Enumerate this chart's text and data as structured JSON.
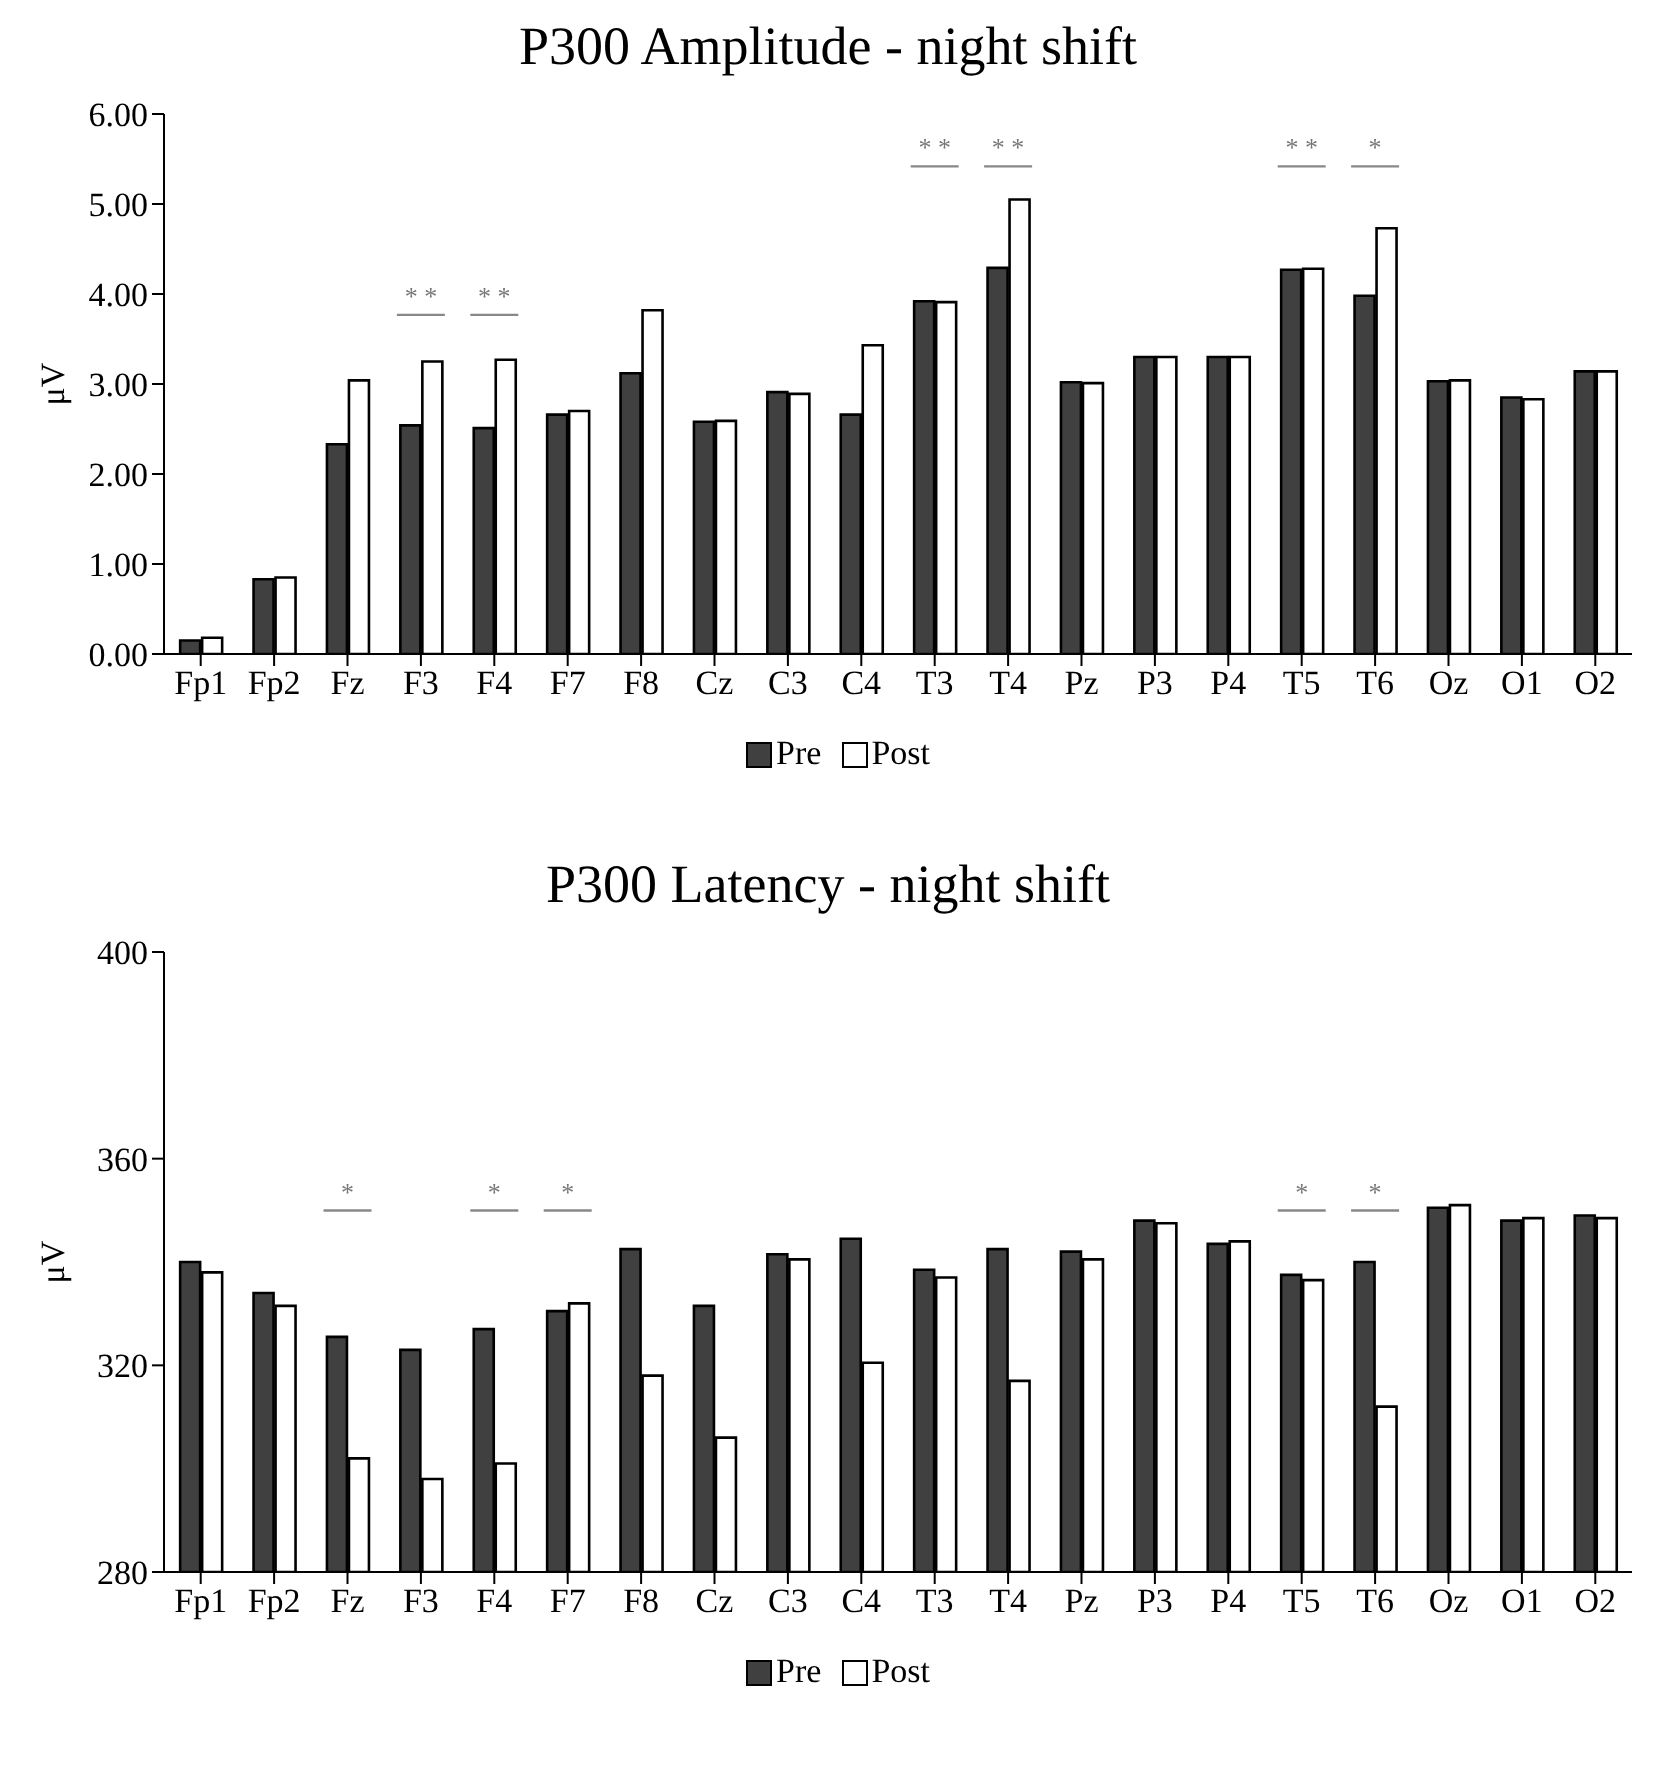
{
  "chart_data": [
    {
      "type": "bar",
      "title": "P300 Amplitude - night shift",
      "ylabel": "μV",
      "categories": [
        "Fp1",
        "Fp2",
        "Fz",
        "F3",
        "F4",
        "F7",
        "F8",
        "Cz",
        "C3",
        "C4",
        "T3",
        "T4",
        "Pz",
        "P3",
        "P4",
        "T5",
        "T6",
        "Oz",
        "O1",
        "O2"
      ],
      "series": [
        {
          "name": "Pre",
          "color": "#404040",
          "values": [
            0.15,
            0.83,
            2.33,
            2.54,
            2.51,
            2.66,
            3.12,
            2.58,
            2.91,
            2.66,
            3.92,
            4.29,
            3.02,
            3.3,
            3.3,
            4.27,
            3.98,
            3.03,
            2.85,
            3.14
          ]
        },
        {
          "name": "Post",
          "color": "#ffffff",
          "values": [
            0.18,
            0.85,
            3.04,
            3.25,
            3.27,
            2.7,
            3.82,
            2.59,
            2.89,
            3.43,
            3.91,
            5.05,
            3.01,
            3.3,
            3.3,
            4.28,
            4.73,
            3.04,
            2.83,
            3.14
          ]
        }
      ],
      "ylim": [
        0,
        6
      ],
      "yticks": [
        {
          "value": 0,
          "label": "0.00"
        },
        {
          "value": 1,
          "label": "1.00"
        },
        {
          "value": 2,
          "label": "2.00"
        },
        {
          "value": 3,
          "label": "3.00"
        },
        {
          "value": 4,
          "label": "4.00"
        },
        {
          "value": 5,
          "label": "5.00"
        },
        {
          "value": 6,
          "label": "6.00"
        }
      ],
      "legend": "bottom",
      "annotations": [
        "* *",
        "* *",
        "* *",
        "* *",
        "* *",
        "*"
      ]
    },
    {
      "type": "bar",
      "title": "P300 Latency - night shift",
      "ylabel": "μV",
      "categories": [
        "Fp1",
        "Fp2",
        "Fz",
        "F3",
        "F4",
        "F7",
        "F8",
        "Cz",
        "C3",
        "C4",
        "T3",
        "T4",
        "Pz",
        "P3",
        "P4",
        "T5",
        "T6",
        "Oz",
        "O1",
        "O2"
      ],
      "series": [
        {
          "name": "Pre",
          "color": "#404040",
          "values": [
            340,
            334,
            325.5,
            323,
            327,
            330.5,
            342.5,
            331.5,
            341.5,
            344.5,
            338.5,
            342.5,
            342,
            348,
            343.5,
            337.5,
            340,
            350.5,
            348,
            349
          ]
        },
        {
          "name": "Post",
          "color": "#ffffff",
          "values": [
            338,
            331.5,
            302,
            298,
            301,
            332,
            318,
            306,
            340.5,
            320.5,
            337,
            317,
            340.5,
            347.5,
            344,
            336.5,
            312,
            351,
            348.5,
            348.5
          ]
        }
      ],
      "ylim": [
        280,
        400
      ],
      "yticks": [
        280,
        320,
        360,
        400
      ],
      "legend": "bottom",
      "annotations": [
        "*",
        "*",
        "*",
        "*",
        "*"
      ]
    }
  ]
}
